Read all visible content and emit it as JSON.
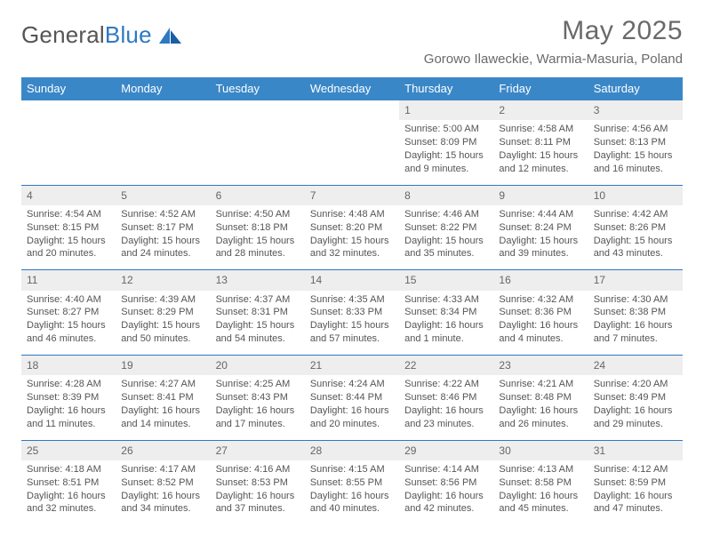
{
  "brand": {
    "name_a": "General",
    "name_b": "Blue"
  },
  "title": "May 2025",
  "location": "Gorowo Ilaweckie, Warmia-Masuria, Poland",
  "colors": {
    "header_bg": "#3a87c8",
    "header_text": "#ffffff",
    "daynum_bg": "#eeeeee",
    "rule": "#2f78c2",
    "body_text": "#555555",
    "title_text": "#6a6a6a",
    "logo_blue": "#2f78c2"
  },
  "day_headers": [
    "Sunday",
    "Monday",
    "Tuesday",
    "Wednesday",
    "Thursday",
    "Friday",
    "Saturday"
  ],
  "weeks": [
    [
      null,
      null,
      null,
      null,
      {
        "n": "1",
        "sunrise": "5:00 AM",
        "sunset": "8:09 PM",
        "daylight": "15 hours and 9 minutes."
      },
      {
        "n": "2",
        "sunrise": "4:58 AM",
        "sunset": "8:11 PM",
        "daylight": "15 hours and 12 minutes."
      },
      {
        "n": "3",
        "sunrise": "4:56 AM",
        "sunset": "8:13 PM",
        "daylight": "15 hours and 16 minutes."
      }
    ],
    [
      {
        "n": "4",
        "sunrise": "4:54 AM",
        "sunset": "8:15 PM",
        "daylight": "15 hours and 20 minutes."
      },
      {
        "n": "5",
        "sunrise": "4:52 AM",
        "sunset": "8:17 PM",
        "daylight": "15 hours and 24 minutes."
      },
      {
        "n": "6",
        "sunrise": "4:50 AM",
        "sunset": "8:18 PM",
        "daylight": "15 hours and 28 minutes."
      },
      {
        "n": "7",
        "sunrise": "4:48 AM",
        "sunset": "8:20 PM",
        "daylight": "15 hours and 32 minutes."
      },
      {
        "n": "8",
        "sunrise": "4:46 AM",
        "sunset": "8:22 PM",
        "daylight": "15 hours and 35 minutes."
      },
      {
        "n": "9",
        "sunrise": "4:44 AM",
        "sunset": "8:24 PM",
        "daylight": "15 hours and 39 minutes."
      },
      {
        "n": "10",
        "sunrise": "4:42 AM",
        "sunset": "8:26 PM",
        "daylight": "15 hours and 43 minutes."
      }
    ],
    [
      {
        "n": "11",
        "sunrise": "4:40 AM",
        "sunset": "8:27 PM",
        "daylight": "15 hours and 46 minutes."
      },
      {
        "n": "12",
        "sunrise": "4:39 AM",
        "sunset": "8:29 PM",
        "daylight": "15 hours and 50 minutes."
      },
      {
        "n": "13",
        "sunrise": "4:37 AM",
        "sunset": "8:31 PM",
        "daylight": "15 hours and 54 minutes."
      },
      {
        "n": "14",
        "sunrise": "4:35 AM",
        "sunset": "8:33 PM",
        "daylight": "15 hours and 57 minutes."
      },
      {
        "n": "15",
        "sunrise": "4:33 AM",
        "sunset": "8:34 PM",
        "daylight": "16 hours and 1 minute."
      },
      {
        "n": "16",
        "sunrise": "4:32 AM",
        "sunset": "8:36 PM",
        "daylight": "16 hours and 4 minutes."
      },
      {
        "n": "17",
        "sunrise": "4:30 AM",
        "sunset": "8:38 PM",
        "daylight": "16 hours and 7 minutes."
      }
    ],
    [
      {
        "n": "18",
        "sunrise": "4:28 AM",
        "sunset": "8:39 PM",
        "daylight": "16 hours and 11 minutes."
      },
      {
        "n": "19",
        "sunrise": "4:27 AM",
        "sunset": "8:41 PM",
        "daylight": "16 hours and 14 minutes."
      },
      {
        "n": "20",
        "sunrise": "4:25 AM",
        "sunset": "8:43 PM",
        "daylight": "16 hours and 17 minutes."
      },
      {
        "n": "21",
        "sunrise": "4:24 AM",
        "sunset": "8:44 PM",
        "daylight": "16 hours and 20 minutes."
      },
      {
        "n": "22",
        "sunrise": "4:22 AM",
        "sunset": "8:46 PM",
        "daylight": "16 hours and 23 minutes."
      },
      {
        "n": "23",
        "sunrise": "4:21 AM",
        "sunset": "8:48 PM",
        "daylight": "16 hours and 26 minutes."
      },
      {
        "n": "24",
        "sunrise": "4:20 AM",
        "sunset": "8:49 PM",
        "daylight": "16 hours and 29 minutes."
      }
    ],
    [
      {
        "n": "25",
        "sunrise": "4:18 AM",
        "sunset": "8:51 PM",
        "daylight": "16 hours and 32 minutes."
      },
      {
        "n": "26",
        "sunrise": "4:17 AM",
        "sunset": "8:52 PM",
        "daylight": "16 hours and 34 minutes."
      },
      {
        "n": "27",
        "sunrise": "4:16 AM",
        "sunset": "8:53 PM",
        "daylight": "16 hours and 37 minutes."
      },
      {
        "n": "28",
        "sunrise": "4:15 AM",
        "sunset": "8:55 PM",
        "daylight": "16 hours and 40 minutes."
      },
      {
        "n": "29",
        "sunrise": "4:14 AM",
        "sunset": "8:56 PM",
        "daylight": "16 hours and 42 minutes."
      },
      {
        "n": "30",
        "sunrise": "4:13 AM",
        "sunset": "8:58 PM",
        "daylight": "16 hours and 45 minutes."
      },
      {
        "n": "31",
        "sunrise": "4:12 AM",
        "sunset": "8:59 PM",
        "daylight": "16 hours and 47 minutes."
      }
    ]
  ],
  "labels": {
    "sunrise": "Sunrise: ",
    "sunset": "Sunset: ",
    "daylight": "Daylight: "
  }
}
